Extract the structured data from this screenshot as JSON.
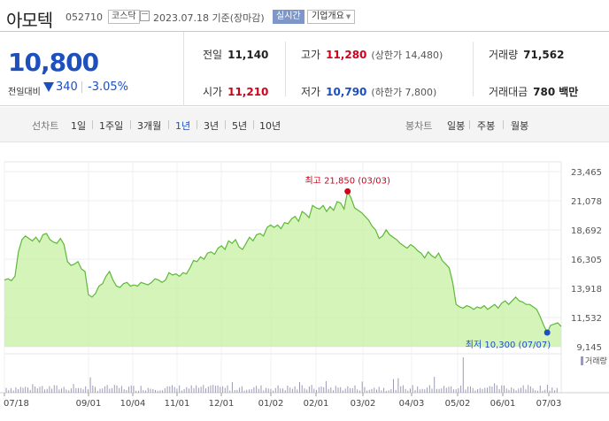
{
  "header": {
    "name": "아모텍",
    "code": "052710",
    "market": "코스닥",
    "date": "2023.07.18 기준(장마감)",
    "live_label": "실시간",
    "info_label": "기업개요"
  },
  "quote": {
    "price": "10,800",
    "compare_label": "전일대비",
    "change": "340",
    "change_pct": "-3.05%",
    "cells": {
      "prev": {
        "label": "전일",
        "value": "11,140"
      },
      "high": {
        "label": "고가",
        "value": "11,280",
        "sub": "(상한가 14,480)"
      },
      "volume": {
        "label": "거래량",
        "value": "71,562"
      },
      "open": {
        "label": "시가",
        "value": "11,210"
      },
      "low": {
        "label": "저가",
        "value": "10,790",
        "sub": "(하한가 7,800)"
      },
      "amount": {
        "label": "거래대금",
        "value": "780",
        "unit": "백만"
      }
    }
  },
  "tabs": {
    "line_chart_label": "선차트",
    "periods": [
      "1일",
      "1주일",
      "3개월",
      "1년",
      "3년",
      "5년",
      "10년"
    ],
    "selected_period": "1년",
    "candle_chart_label": "봉차트",
    "candle_periods": [
      "일봉",
      "주봉",
      "월봉"
    ]
  },
  "colors": {
    "price_down": "#1d4fbd",
    "price_up": "#d0021b",
    "area_fill": "#c6f0a3",
    "area_line": "#5fb83a",
    "volume_bar": "#9a9ab8"
  },
  "chart_data": {
    "type": "area",
    "y_ticks": [
      "23,465",
      "21,078",
      "18,692",
      "16,305",
      "13,918",
      "11,532",
      "9,145"
    ],
    "ylim": [
      9145,
      23465
    ],
    "x_ticks": [
      "07/18",
      "09/01",
      "10/04",
      "11/01",
      "12/01",
      "01/02",
      "02/01",
      "03/02",
      "04/03",
      "05/02",
      "06/01",
      "07/03"
    ],
    "high_annotation": "최고 21,850 (03/03)",
    "low_annotation": "최저 10,300 (07/07)",
    "high": {
      "date": "03/03",
      "value": 21850
    },
    "low": {
      "date": "07/07",
      "value": 10300
    },
    "volume_label": "거래량",
    "values": [
      14600,
      14700,
      14550,
      14900,
      16900,
      17900,
      18200,
      18000,
      17800,
      18100,
      17700,
      18300,
      18400,
      17900,
      17700,
      17600,
      18000,
      17500,
      16100,
      15800,
      15900,
      16100,
      15500,
      15300,
      13400,
      13200,
      13500,
      14100,
      14300,
      14900,
      15300,
      14600,
      14100,
      14000,
      14300,
      14400,
      14100,
      14200,
      14100,
      14400,
      14300,
      14200,
      14400,
      14700,
      14600,
      14400,
      14600,
      15200,
      15000,
      15100,
      14900,
      15200,
      15100,
      15600,
      16200,
      16100,
      16500,
      16300,
      16800,
      16900,
      16700,
      17200,
      17400,
      17100,
      17800,
      17600,
      17900,
      17300,
      17100,
      17600,
      18100,
      17800,
      18300,
      18400,
      18200,
      18900,
      19100,
      18900,
      19100,
      18800,
      19300,
      19200,
      19600,
      19800,
      19400,
      20200,
      20000,
      19700,
      20700,
      20500,
      20400,
      20700,
      20200,
      20600,
      20300,
      21000,
      20900,
      20400,
      21850,
      21300,
      20500,
      20300,
      20100,
      19800,
      19500,
      19000,
      18700,
      18000,
      18200,
      18700,
      18300,
      18100,
      17900,
      17600,
      17400,
      17200,
      17500,
      17300,
      17000,
      16800,
      16400,
      16900,
      16600,
      16400,
      16800,
      16200,
      15900,
      15600,
      14400,
      12600,
      12400,
      12300,
      12500,
      12400,
      12200,
      12400,
      12300,
      12500,
      12200,
      12400,
      12600,
      12300,
      12700,
      12900,
      12600,
      12900,
      13200,
      12900,
      12800,
      12600,
      12600,
      12400,
      12200,
      11600,
      10900,
      10300,
      10900,
      11000,
      11100,
      10800
    ]
  }
}
